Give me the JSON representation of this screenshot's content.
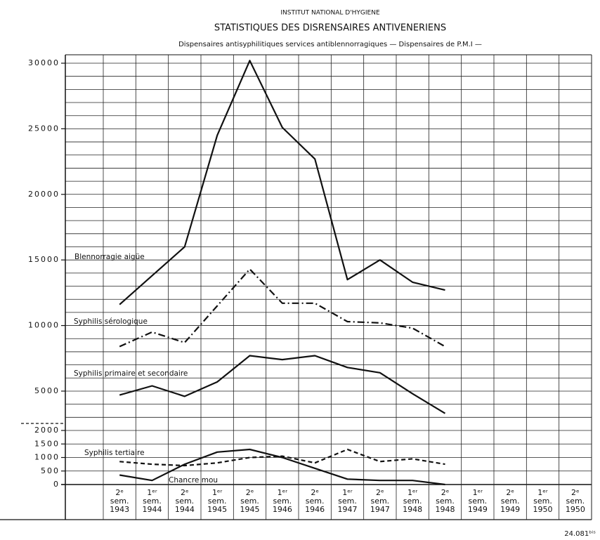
{
  "chart_data": {
    "type": "line",
    "title": "STATISTIQUES DES DISRENSAIRES ANTIVENERIENS",
    "supertitle": "INSTITUT NATIONAL D'HYGIENE",
    "subtitle": "Dispensaires antisyphilitiques services antiblennorragiques — Dispensaires de P.M.I —",
    "reference": "24.081ᵇⁱˢ",
    "categories": [
      "2ᵉ sem. 1943",
      "1ᵉʳ sem. 1944",
      "2ᵉ sem. 1944",
      "1ᵉʳ sem. 1945",
      "2ᵉ sem. 1945",
      "1ᵉʳ sem. 1946",
      "2ᵉ sem. 1946",
      "1ᵉʳ sem. 1947",
      "2ᵉ sem. 1947",
      "1ᵉʳ sem. 1948",
      "2ᵉ sem. 1948",
      "1ᵉʳ sem. 1949",
      "2ᵉ sem. 1949",
      "1ᵉʳ sem. 1950",
      "2ᵉ sem. 1950"
    ],
    "ylim": [
      0,
      30000
    ],
    "y_segments": [
      {
        "ylim": [
          0,
          2000
        ],
        "yticks": [
          0,
          500,
          1000,
          1500,
          2000
        ]
      },
      {
        "ylim": [
          2000,
          30000
        ],
        "yticks": [
          5000,
          10000,
          15000,
          20000,
          25000,
          30000
        ],
        "grid": [
          3000,
          4000,
          5000,
          6000,
          7000,
          8000,
          9000,
          10000,
          11000,
          12000,
          13000,
          14000,
          15000,
          16000,
          17000,
          18000,
          19000,
          20000,
          21000,
          22000,
          23000,
          24000,
          25000,
          26000,
          27000,
          28000,
          29000,
          30000
        ]
      }
    ],
    "grid": true,
    "series": [
      {
        "name": "Blennorragie aigüe",
        "color": "#111111",
        "dash": "solid",
        "values": [
          11600,
          13800,
          16000,
          24500,
          30200,
          25100,
          22700,
          13500,
          15000,
          13300,
          12700,
          null,
          null,
          null,
          null
        ]
      },
      {
        "name": "Syphilis sérologique",
        "color": "#111111",
        "dash": "dashdot",
        "values": [
          8400,
          9500,
          8700,
          11500,
          14300,
          11700,
          11700,
          10300,
          10200,
          9800,
          8400,
          null,
          null,
          null,
          null
        ]
      },
      {
        "name": "Syphilis primaire et secondaire",
        "color": "#111111",
        "dash": "solid",
        "values": [
          4700,
          5400,
          4600,
          5700,
          7700,
          7400,
          7700,
          6800,
          6400,
          4800,
          3300,
          null,
          null,
          null,
          null
        ]
      },
      {
        "name": "Syphilis tertiaire",
        "color": "#111111",
        "dash": "dashed",
        "values": [
          850,
          750,
          700,
          800,
          1000,
          1050,
          800,
          1300,
          850,
          950,
          750,
          null,
          null,
          null,
          null
        ]
      },
      {
        "name": "Chancre mou",
        "color": "#111111",
        "dash": "solid",
        "values": [
          350,
          150,
          750,
          1200,
          1300,
          1000,
          600,
          200,
          150,
          150,
          0,
          null,
          null,
          null,
          null
        ]
      }
    ]
  }
}
